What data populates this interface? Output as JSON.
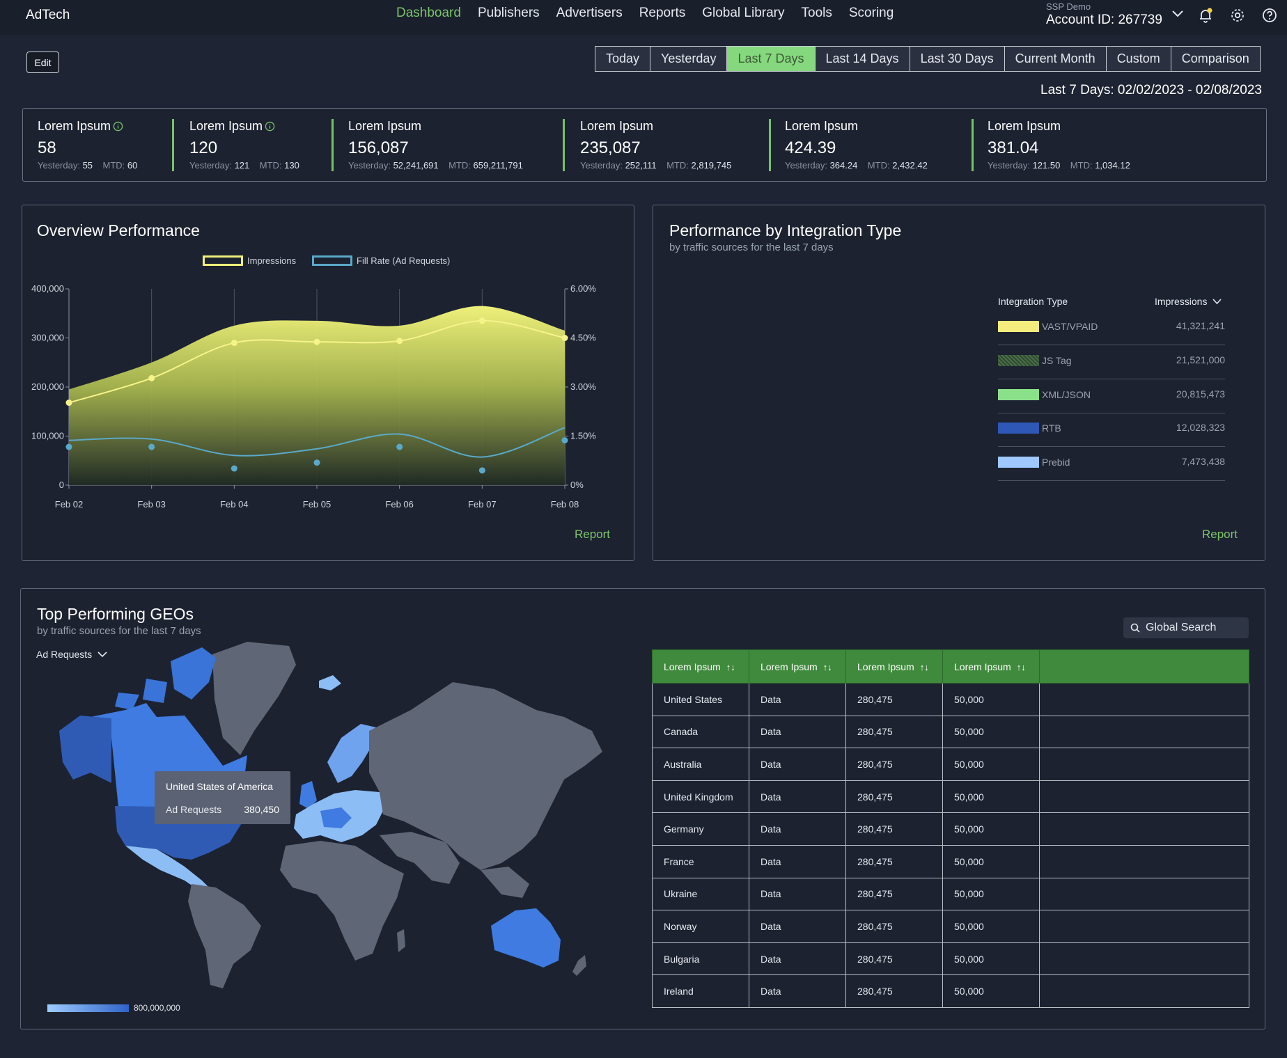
{
  "app": {
    "brand": "AdTech"
  },
  "nav": {
    "items": [
      "Dashboard",
      "Publishers",
      "Advertisers",
      "Reports",
      "Global Library",
      "Tools",
      "Scoring"
    ],
    "active": "Dashboard"
  },
  "account": {
    "label": "SSP Demo",
    "id": "Account ID: 267739"
  },
  "toolbar": {
    "edit_label": "Edit"
  },
  "date_range": {
    "options": [
      "Today",
      "Yesterday",
      "Last 7 Days",
      "Last 14 Days",
      "Last 30 Days",
      "Current Month",
      "Custom",
      "Comparison"
    ],
    "active": "Last 7 Days",
    "summary": "Last 7 Days: 02/02/2023 - 02/08/2023"
  },
  "kpis": [
    {
      "label": "Lorem Ipsum",
      "value": "58",
      "yesterday_label": "Yesterday:",
      "yesterday": "55",
      "mtd_label": "MTD:",
      "mtd": "60",
      "info": true
    },
    {
      "label": "Lorem Ipsum",
      "value": "120",
      "yesterday_label": "Yesterday:",
      "yesterday": "121",
      "mtd_label": "MTD:",
      "mtd": "130",
      "info": true
    },
    {
      "label": "Lorem Ipsum",
      "value": "156,087",
      "yesterday_label": "Yesterday:",
      "yesterday": "52,241,691",
      "mtd_label": "MTD:",
      "mtd": "659,211,791",
      "info": false
    },
    {
      "label": "Lorem Ipsum",
      "value": "235,087",
      "yesterday_label": "Yesterday:",
      "yesterday": "252,111",
      "mtd_label": "MTD:",
      "mtd": "2,819,745",
      "info": false
    },
    {
      "label": "Lorem Ipsum",
      "value": "424.39",
      "yesterday_label": "Yesterday:",
      "yesterday": "364.24",
      "mtd_label": "MTD:",
      "mtd": "2,432.42",
      "info": false
    },
    {
      "label": "Lorem Ipsum",
      "value": "381.04",
      "yesterday_label": "Yesterday:",
      "yesterday": "121.50",
      "mtd_label": "MTD:",
      "mtd": "1,034.12",
      "info": false
    }
  ],
  "overview": {
    "title": "Overview Performance",
    "report_label": "Report"
  },
  "chart_data": {
    "type": "line",
    "title": "Overview Performance",
    "categories": [
      "Feb 02",
      "Feb 03",
      "Feb 04",
      "Feb 05",
      "Feb 06",
      "Feb 07",
      "Feb 08"
    ],
    "y_ticks": [
      "400,000",
      "300,000",
      "200,000",
      "100,000",
      "0"
    ],
    "y2_ticks": [
      "6.00%",
      "4.50%",
      "3.00%",
      "1.50%",
      "0%"
    ],
    "ylim": [
      0,
      400000
    ],
    "y2lim": [
      0,
      6
    ],
    "legend_position": "top-center",
    "grid": true,
    "series": [
      {
        "name": "Impressions",
        "axis": "left",
        "type": "area",
        "color": "#f0ef7a",
        "upper": [
          195000,
          250000,
          325000,
          335000,
          325000,
          365000,
          315000
        ],
        "values": [
          168000,
          218000,
          290000,
          292000,
          294000,
          335000,
          300000
        ]
      },
      {
        "name": "Fill Rate (Ad Requests)",
        "axis": "right",
        "type": "line",
        "color": "#5aa9c9",
        "curve": [
          1.37,
          1.41,
          0.91,
          1.11,
          1.56,
          0.86,
          1.76
        ],
        "values": [
          1.17,
          1.17,
          0.51,
          0.69,
          1.17,
          0.45,
          1.37
        ]
      }
    ]
  },
  "integration": {
    "title": "Performance by Integration Type",
    "subtitle": "by traffic sources for the last 7 days",
    "col_type": "Integration Type",
    "col_impressions": "Impressions",
    "report_label": "Report",
    "rows": [
      {
        "name": "VAST/VPAID",
        "value": "41,321,241",
        "color": "#f4ec7c"
      },
      {
        "name": "JS Tag",
        "value": "21,521,000",
        "color": "#3c5e3c"
      },
      {
        "name": "XML/JSON",
        "value": "20,815,473",
        "color": "#8be08a"
      },
      {
        "name": "RTB",
        "value": "12,028,323",
        "color": "#2f57b5"
      },
      {
        "name": "Prebid",
        "value": "7,473,438",
        "color": "#9ec8ff"
      }
    ]
  },
  "geos": {
    "title": "Top Performing GEOs",
    "subtitle": "by traffic sources for the last 7 days",
    "metric_dropdown": "Ad Requests",
    "search_label": "Global Search",
    "tooltip": {
      "country": "United States of America",
      "metric": "Ad Requests",
      "value": "380,450"
    },
    "scale_max": "800,000,000",
    "columns": [
      "Lorem Ipsum",
      "Lorem Ipsum",
      "Lorem Ipsum",
      "Lorem Ipsum"
    ],
    "rows": [
      [
        "United States",
        "Data",
        "280,475",
        "50,000"
      ],
      [
        "Canada",
        "Data",
        "280,475",
        "50,000"
      ],
      [
        "Australia",
        "Data",
        "280,475",
        "50,000"
      ],
      [
        "United Kingdom",
        "Data",
        "280,475",
        "50,000"
      ],
      [
        "Germany",
        "Data",
        "280,475",
        "50,000"
      ],
      [
        "France",
        "Data",
        "280,475",
        "50,000"
      ],
      [
        "Ukraine",
        "Data",
        "280,475",
        "50,000"
      ],
      [
        "Norway",
        "Data",
        "280,475",
        "50,000"
      ],
      [
        "Bulgaria",
        "Data",
        "280,475",
        "50,000"
      ],
      [
        "Ireland",
        "Data",
        "280,475",
        "50,000"
      ]
    ]
  },
  "colors": {
    "accent": "#7cc56b",
    "background": "#1e2433",
    "panel": "#1c2230",
    "table_header": "#3f8a3c"
  }
}
